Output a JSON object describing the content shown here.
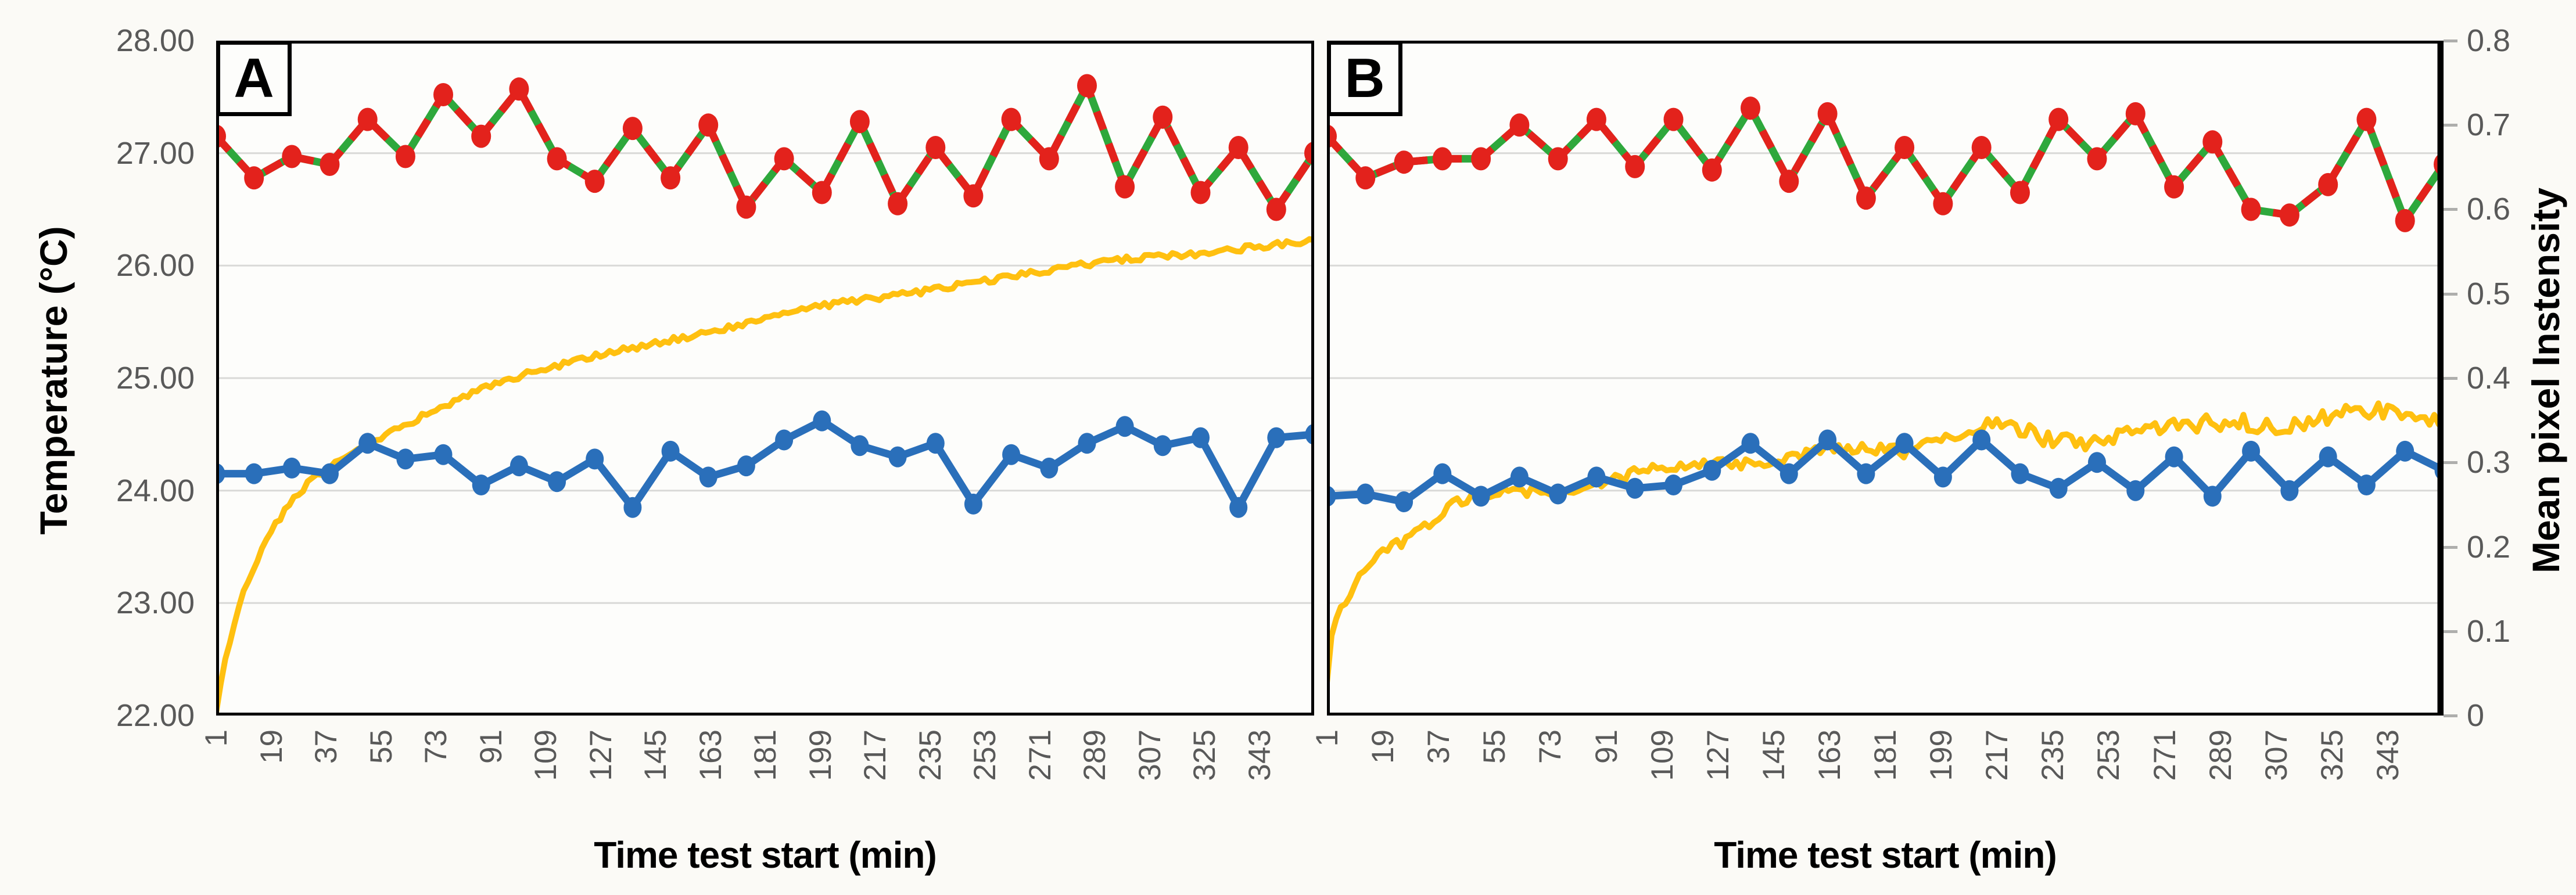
{
  "figure": {
    "background": "#fbfaf6"
  },
  "chart_data": {
    "type": "line",
    "title": "",
    "legend": "none",
    "grid": "horizontal",
    "x_axis": {
      "title": "Time test start (min)",
      "min": 1,
      "max": 361,
      "tick_labels": [
        1,
        19,
        37,
        55,
        73,
        91,
        109,
        127,
        145,
        163,
        181,
        199,
        217,
        235,
        253,
        271,
        289,
        307,
        325,
        343
      ],
      "tick_rotation_deg": -90
    },
    "y_axis_left": {
      "title": "Temperature (°C)",
      "min": 22,
      "max": 28,
      "tick_labels": [
        "28.00",
        "27.00",
        "26.00",
        "25.00",
        "24.00",
        "23.00",
        "22.00"
      ]
    },
    "y_axis_right": {
      "title": "Mean pixel Instensity",
      "min": 0,
      "max": 0.8,
      "tick_labels": [
        "0.8",
        "0.7",
        "0.6",
        "0.5",
        "0.4",
        "0.3",
        "0.2",
        "0.1",
        "0"
      ]
    },
    "colors": {
      "red_dashed_series": "#E3221C",
      "green_solid_series": "#2EA83C",
      "blue_marker_series": "#2A6FBA",
      "yellow_intensity_series": "#FFC010",
      "gridline": "#D9D9D7",
      "tick_text": "#595959",
      "frame": "#000000",
      "plot_background": "#fdfdfb"
    },
    "panels": [
      {
        "label": "A",
        "series_styles": [
          {
            "id": "green-solid-line",
            "axis": "left",
            "style": "solid line under red dashes",
            "uses": "temperature_markers"
          },
          {
            "id": "red-dashed-markers",
            "axis": "left",
            "style": "dashed line with round markers",
            "uses": "temperature_markers"
          },
          {
            "id": "blue-markers-line",
            "axis": "left",
            "style": "solid line with round markers",
            "uses": "camera_blue"
          },
          {
            "id": "yellow-noisy-line",
            "axis": "right",
            "style": "thin noisy line",
            "uses": "intensity_yellow_anchors"
          }
        ],
        "temperature_markers": [
          27.15,
          26.78,
          26.97,
          26.9,
          27.3,
          26.97,
          27.52,
          27.15,
          27.57,
          26.95,
          26.75,
          27.22,
          26.78,
          27.25,
          26.52,
          26.95,
          26.65,
          27.28,
          26.55,
          27.05,
          26.62,
          27.3,
          26.95,
          27.6,
          26.7,
          27.32,
          26.65,
          27.05,
          26.5,
          27.0
        ],
        "camera_blue": [
          24.15,
          24.15,
          24.2,
          24.15,
          24.42,
          24.28,
          24.32,
          24.05,
          24.22,
          24.08,
          24.28,
          23.85,
          24.35,
          24.12,
          24.22,
          24.45,
          24.62,
          24.4,
          24.3,
          24.42,
          23.88,
          24.32,
          24.2,
          24.42,
          24.57,
          24.4,
          24.47,
          23.85,
          24.47,
          24.5
        ],
        "intensity_yellow_anchors": [
          [
            1,
            0.005
          ],
          [
            3,
            0.05
          ],
          [
            7,
            0.11
          ],
          [
            12,
            0.165
          ],
          [
            18,
            0.21
          ],
          [
            25,
            0.25
          ],
          [
            33,
            0.28
          ],
          [
            42,
            0.305
          ],
          [
            50,
            0.32
          ],
          [
            60,
            0.34
          ],
          [
            70,
            0.36
          ],
          [
            80,
            0.375
          ],
          [
            95,
            0.395
          ],
          [
            110,
            0.41
          ],
          [
            130,
            0.43
          ],
          [
            150,
            0.447
          ],
          [
            170,
            0.462
          ],
          [
            190,
            0.477
          ],
          [
            210,
            0.49
          ],
          [
            230,
            0.503
          ],
          [
            250,
            0.515
          ],
          [
            270,
            0.525
          ],
          [
            290,
            0.535
          ],
          [
            310,
            0.545
          ],
          [
            330,
            0.552
          ],
          [
            345,
            0.558
          ],
          [
            361,
            0.563
          ]
        ]
      },
      {
        "label": "B",
        "series_styles": [
          {
            "id": "green-solid-line",
            "axis": "left",
            "style": "solid line under red dashes",
            "uses": "temperature_markers"
          },
          {
            "id": "red-dashed-markers",
            "axis": "left",
            "style": "dashed line with round markers",
            "uses": "temperature_markers"
          },
          {
            "id": "blue-markers-line",
            "axis": "left",
            "style": "solid line with round markers",
            "uses": "camera_blue"
          },
          {
            "id": "yellow-noisy-line",
            "axis": "right",
            "style": "thin noisy line",
            "uses": "intensity_yellow_anchors"
          }
        ],
        "temperature_markers": [
          27.15,
          26.78,
          26.92,
          26.95,
          26.95,
          27.25,
          26.95,
          27.3,
          26.88,
          27.3,
          26.85,
          27.4,
          26.75,
          27.35,
          26.6,
          27.05,
          26.55,
          27.05,
          26.65,
          27.3,
          26.95,
          27.35,
          26.7,
          27.1,
          26.5,
          26.45,
          26.72,
          27.3,
          26.4,
          26.9
        ],
        "camera_blue": [
          23.95,
          23.97,
          23.9,
          24.15,
          23.95,
          24.12,
          23.97,
          24.12,
          24.02,
          24.05,
          24.18,
          24.42,
          24.15,
          24.45,
          24.15,
          24.42,
          24.12,
          24.45,
          24.15,
          24.02,
          24.25,
          24.0,
          24.3,
          23.95,
          24.35,
          24.0,
          24.3,
          24.05,
          24.35,
          24.18
        ],
        "intensity_yellow_anchors": [
          [
            1,
            0.035
          ],
          [
            2,
            0.08
          ],
          [
            4,
            0.105
          ],
          [
            6,
            0.125
          ],
          [
            9,
            0.15
          ],
          [
            13,
            0.175
          ],
          [
            18,
            0.195
          ],
          [
            24,
            0.21
          ],
          [
            32,
            0.225
          ],
          [
            42,
            0.25
          ],
          [
            55,
            0.26
          ],
          [
            70,
            0.268
          ],
          [
            85,
            0.275
          ],
          [
            100,
            0.284
          ],
          [
            115,
            0.293
          ],
          [
            130,
            0.302
          ],
          [
            145,
            0.305
          ],
          [
            160,
            0.308
          ],
          [
            175,
            0.313
          ],
          [
            190,
            0.32
          ],
          [
            202,
            0.33
          ],
          [
            212,
            0.342
          ],
          [
            222,
            0.334
          ],
          [
            235,
            0.325
          ],
          [
            250,
            0.331
          ],
          [
            265,
            0.342
          ],
          [
            280,
            0.338
          ],
          [
            295,
            0.35
          ],
          [
            310,
            0.346
          ],
          [
            325,
            0.353
          ],
          [
            340,
            0.357
          ],
          [
            352,
            0.351
          ],
          [
            361,
            0.355
          ]
        ]
      }
    ]
  }
}
